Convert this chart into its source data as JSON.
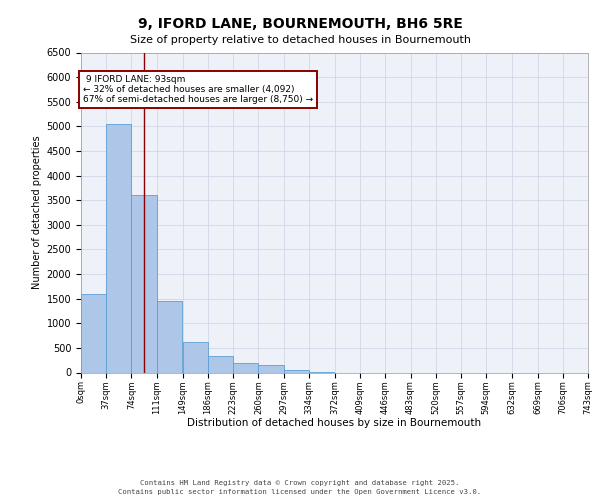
{
  "title_line1": "9, IFORD LANE, BOURNEMOUTH, BH6 5RE",
  "title_line2": "Size of property relative to detached houses in Bournemouth",
  "xlabel": "Distribution of detached houses by size in Bournemouth",
  "ylabel": "Number of detached properties",
  "bar_color": "#aec6e8",
  "bar_edge_color": "#5a9fd4",
  "annotation_line_color": "#8b0000",
  "annotation_box_color": "#8b0000",
  "property_size": 93,
  "property_label": "9 IFORD LANE: 93sqm",
  "pct_smaller": "32%",
  "pct_larger": "67%",
  "n_smaller": "4,092",
  "n_larger": "8,750",
  "footer_line1": "Contains HM Land Registry data © Crown copyright and database right 2025.",
  "footer_line2": "Contains public sector information licensed under the Open Government Licence v3.0.",
  "bin_edges": [
    0,
    37,
    74,
    111,
    149,
    186,
    223,
    260,
    297,
    334,
    372,
    409,
    446,
    483,
    520,
    557,
    594,
    632,
    669,
    706,
    743
  ],
  "bin_labels": [
    "0sqm",
    "37sqm",
    "74sqm",
    "111sqm",
    "149sqm",
    "186sqm",
    "223sqm",
    "260sqm",
    "297sqm",
    "334sqm",
    "372sqm",
    "409sqm",
    "446sqm",
    "483sqm",
    "520sqm",
    "557sqm",
    "594sqm",
    "632sqm",
    "669sqm",
    "706sqm",
    "743sqm"
  ],
  "bar_heights": [
    1600,
    5050,
    3600,
    1450,
    620,
    330,
    195,
    155,
    60,
    10,
    0,
    0,
    0,
    0,
    0,
    0,
    0,
    0,
    0,
    0
  ],
  "ylim": [
    0,
    6500
  ],
  "yticks": [
    0,
    500,
    1000,
    1500,
    2000,
    2500,
    3000,
    3500,
    4000,
    4500,
    5000,
    5500,
    6000,
    6500
  ],
  "grid_color": "#d0d8e8",
  "bg_color": "#eef2f8"
}
